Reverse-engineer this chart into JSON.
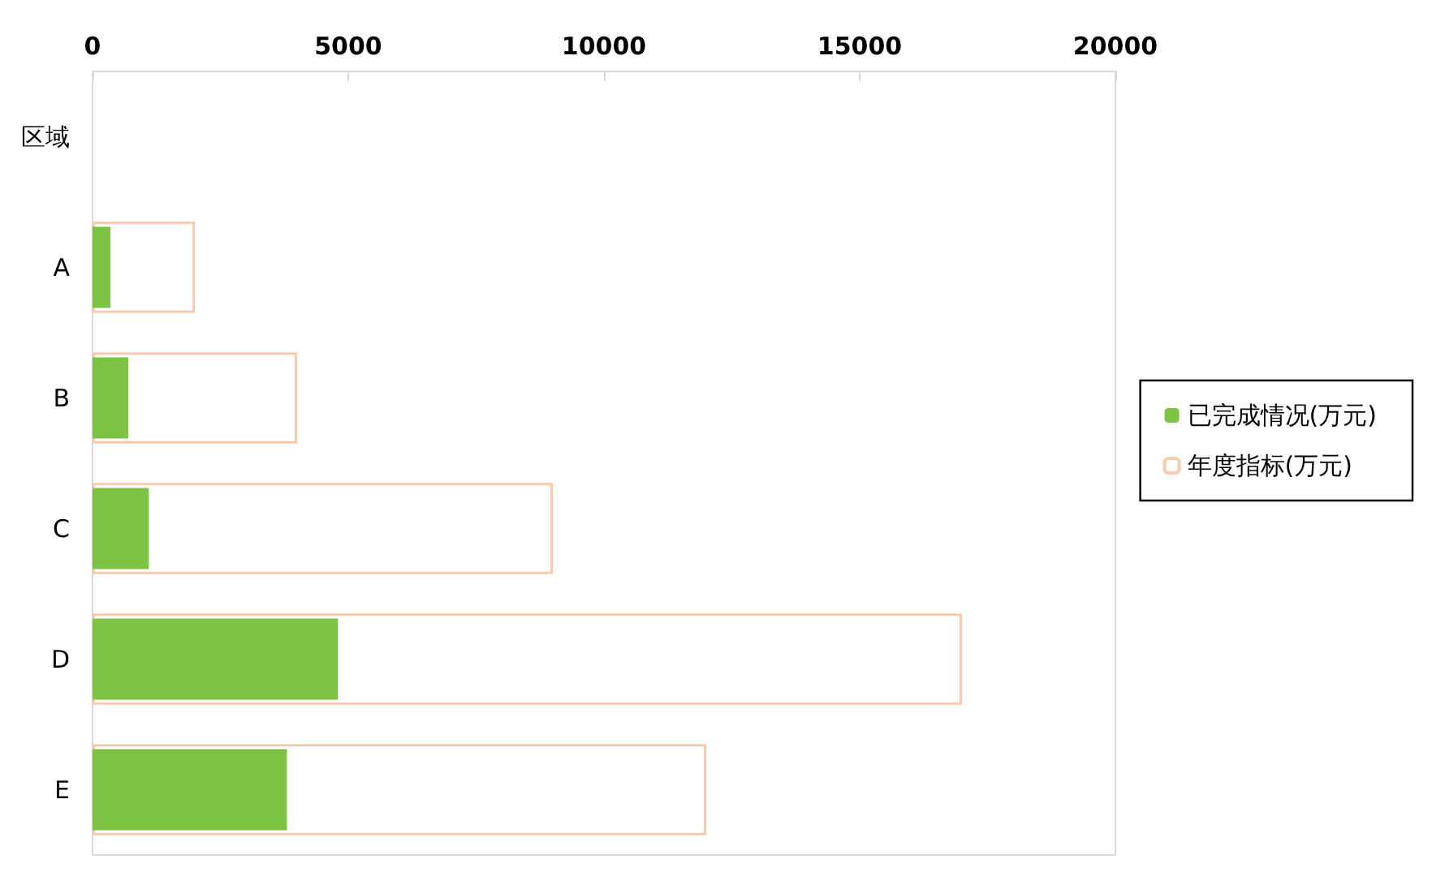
{
  "chart_data": {
    "type": "bar",
    "orientation": "horizontal",
    "categories": [
      "区域",
      "A",
      "B",
      "C",
      "D",
      "E"
    ],
    "series": [
      {
        "name": "已完成情况(万元)",
        "color": "#7dc242",
        "values": [
          null,
          350,
          700,
          1100,
          4800,
          3800
        ]
      },
      {
        "name": "年度指标(万元)",
        "color": "#f8cbad",
        "values": [
          null,
          2000,
          4000,
          9000,
          17000,
          12000
        ]
      }
    ],
    "xlim": [
      0,
      20000
    ],
    "xticks": [
      0,
      5000,
      10000,
      15000,
      20000
    ],
    "legend": "right"
  }
}
